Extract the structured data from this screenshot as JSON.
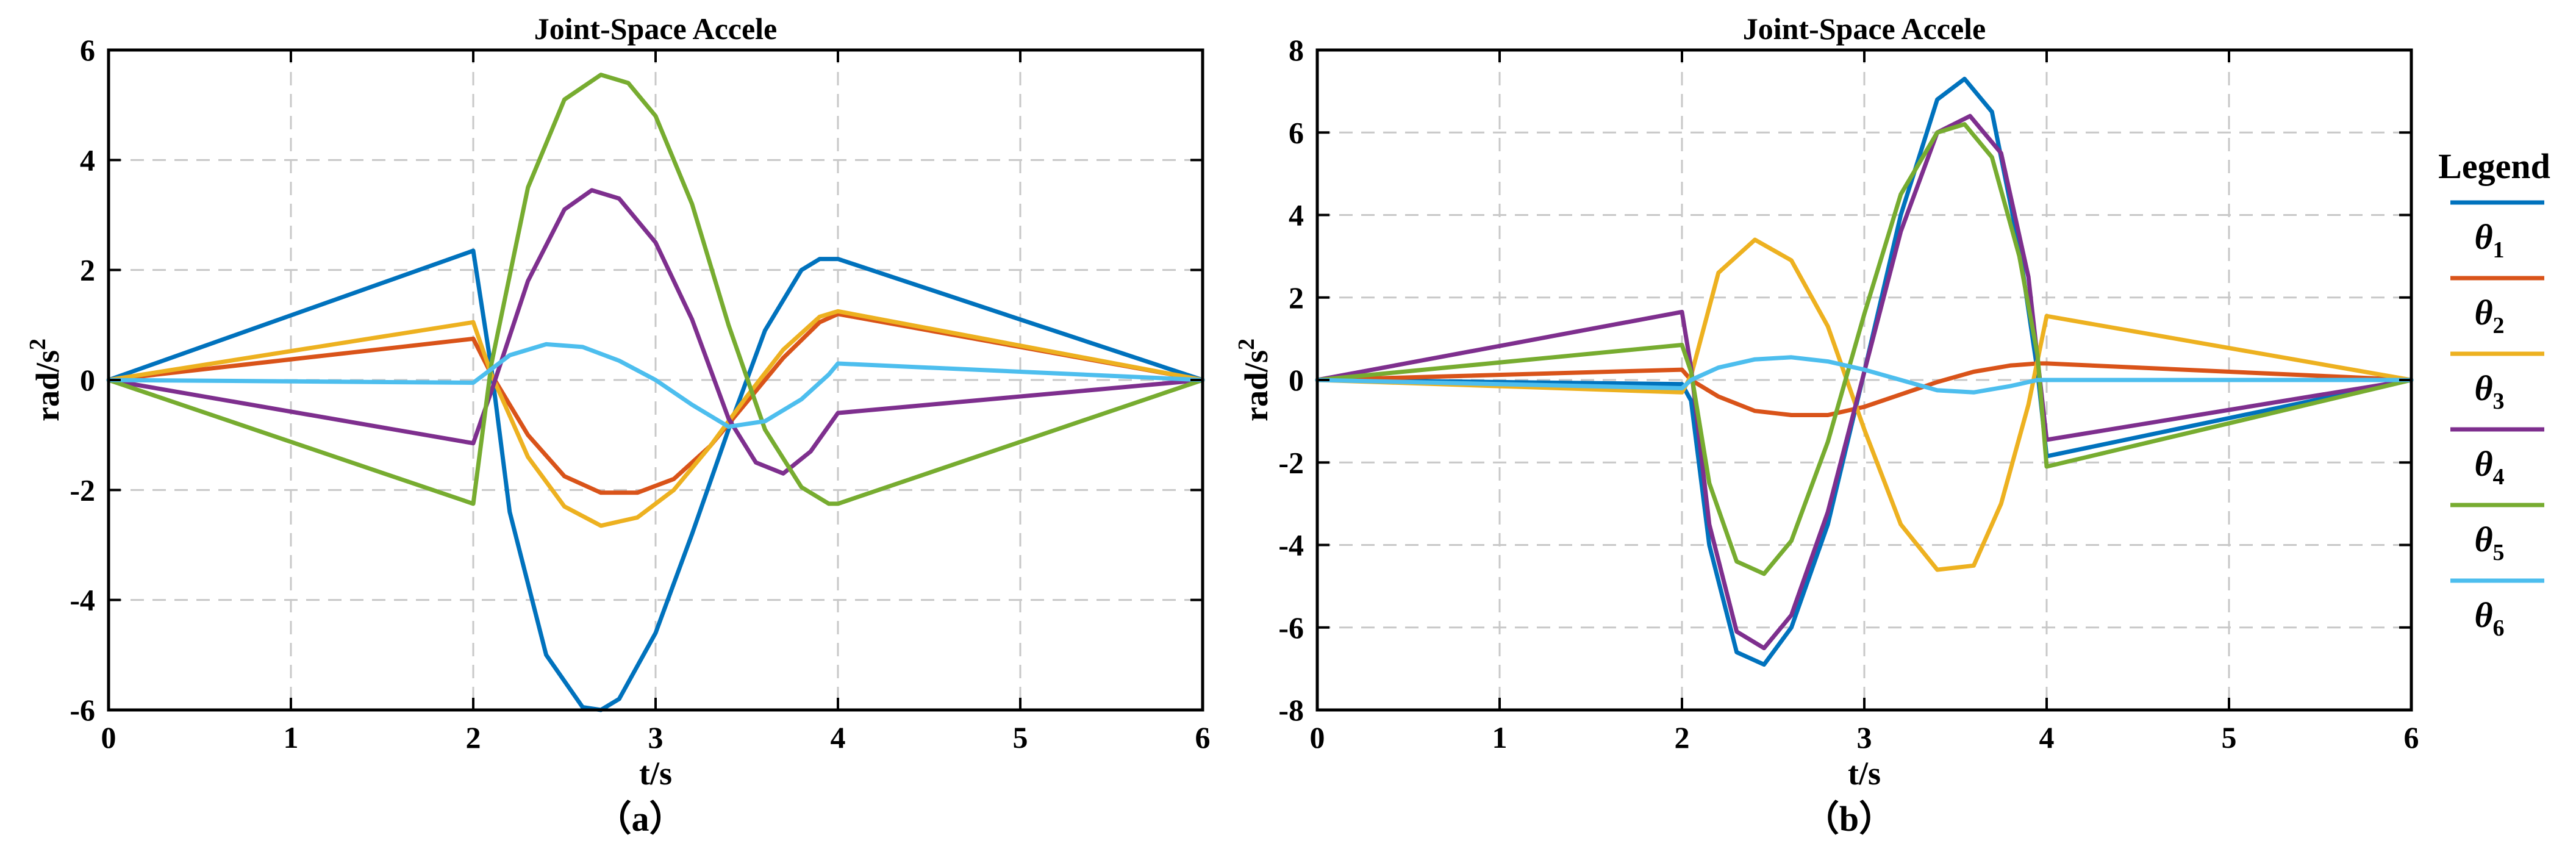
{
  "chart_data": [
    {
      "type": "line",
      "title": "Joint-Space Accele",
      "caption": "（a）",
      "xlabel": "t/s",
      "ylabel": "rad/s",
      "ylabel_sup": "2",
      "xlim": [
        0,
        6
      ],
      "ylim": [
        -6,
        6
      ],
      "xticks": [
        "0",
        "1",
        "2",
        "3",
        "4",
        "5",
        "6"
      ],
      "yticks": [
        "-6",
        "-4",
        "-2",
        "0",
        "2",
        "4",
        "6"
      ],
      "grid": true,
      "series": [
        {
          "name": "θ1",
          "color": "#0072BD",
          "x": [
            0,
            2,
            2.1,
            2.2,
            2.4,
            2.6,
            2.7,
            2.8,
            3.0,
            3.2,
            3.4,
            3.6,
            3.8,
            3.9,
            4.0,
            6
          ],
          "y": [
            0,
            2.35,
            0.2,
            -2.4,
            -5.0,
            -5.95,
            -6.0,
            -5.8,
            -4.6,
            -2.8,
            -0.9,
            0.9,
            2.0,
            2.2,
            2.2,
            0
          ]
        },
        {
          "name": "θ2",
          "color": "#D95319",
          "x": [
            0,
            2,
            2.1,
            2.3,
            2.5,
            2.7,
            2.9,
            3.1,
            3.3,
            3.5,
            3.7,
            3.9,
            4.0,
            6
          ],
          "y": [
            0,
            0.75,
            0.1,
            -1.0,
            -1.75,
            -2.05,
            -2.05,
            -1.8,
            -1.2,
            -0.4,
            0.4,
            1.05,
            1.2,
            0
          ]
        },
        {
          "name": "θ3",
          "color": "#EDB120",
          "x": [
            0,
            2,
            2.1,
            2.3,
            2.5,
            2.7,
            2.9,
            3.1,
            3.3,
            3.5,
            3.7,
            3.9,
            4.0,
            6
          ],
          "y": [
            0,
            1.05,
            0.1,
            -1.4,
            -2.3,
            -2.65,
            -2.5,
            -2.0,
            -1.2,
            -0.3,
            0.55,
            1.15,
            1.25,
            0
          ]
        },
        {
          "name": "θ4",
          "color": "#7E2F8E",
          "x": [
            0,
            2,
            2.1,
            2.3,
            2.5,
            2.65,
            2.8,
            3.0,
            3.2,
            3.4,
            3.55,
            3.7,
            3.85,
            4.0,
            6
          ],
          "y": [
            0,
            -1.15,
            -0.2,
            1.8,
            3.1,
            3.45,
            3.3,
            2.5,
            1.1,
            -0.7,
            -1.5,
            -1.7,
            -1.3,
            -0.6,
            0
          ]
        },
        {
          "name": "θ5",
          "color": "#77AC30",
          "x": [
            0,
            2,
            2.1,
            2.3,
            2.5,
            2.7,
            2.85,
            3.0,
            3.2,
            3.4,
            3.6,
            3.8,
            3.95,
            4.0,
            6
          ],
          "y": [
            0,
            -2.25,
            0.3,
            3.5,
            5.1,
            5.55,
            5.4,
            4.8,
            3.2,
            1.0,
            -0.9,
            -1.95,
            -2.25,
            -2.25,
            0
          ]
        },
        {
          "name": "θ6",
          "color": "#4DBEEE",
          "x": [
            0,
            2,
            2.1,
            2.2,
            2.4,
            2.6,
            2.8,
            3.0,
            3.2,
            3.4,
            3.6,
            3.8,
            3.95,
            4.0,
            6
          ],
          "y": [
            0,
            -0.05,
            0.2,
            0.45,
            0.65,
            0.6,
            0.35,
            0.0,
            -0.45,
            -0.85,
            -0.75,
            -0.35,
            0.1,
            0.3,
            0
          ]
        }
      ]
    },
    {
      "type": "line",
      "title": "Joint-Space Accele",
      "caption": "（b）",
      "xlabel": "t/s",
      "ylabel": "rad/s",
      "ylabel_sup": "2",
      "xlim": [
        0,
        6
      ],
      "ylim": [
        -8,
        8
      ],
      "xticks": [
        "0",
        "1",
        "2",
        "3",
        "4",
        "5",
        "6"
      ],
      "yticks": [
        "-8",
        "-6",
        "-4",
        "-2",
        "0",
        "2",
        "4",
        "6",
        "8"
      ],
      "grid": true,
      "legend_title": "Legend",
      "legend_position": "right",
      "series": [
        {
          "name": "θ1",
          "color": "#0072BD",
          "x": [
            0,
            2,
            2.05,
            2.15,
            2.3,
            2.45,
            2.6,
            2.8,
            3.0,
            3.2,
            3.4,
            3.55,
            3.7,
            3.85,
            3.95,
            4.0,
            6
          ],
          "y": [
            0,
            -0.1,
            -0.5,
            -4.0,
            -6.6,
            -6.9,
            -6.0,
            -3.5,
            0.2,
            4.0,
            6.8,
            7.3,
            6.5,
            3.2,
            0.2,
            -1.85,
            0
          ]
        },
        {
          "name": "θ2",
          "color": "#D95319",
          "x": [
            0,
            2,
            2.05,
            2.2,
            2.4,
            2.6,
            2.8,
            3.0,
            3.2,
            3.4,
            3.6,
            3.8,
            3.95,
            4.0,
            6
          ],
          "y": [
            0,
            0.25,
            0.0,
            -0.4,
            -0.75,
            -0.85,
            -0.85,
            -0.65,
            -0.35,
            -0.05,
            0.2,
            0.35,
            0.4,
            0.4,
            0
          ]
        },
        {
          "name": "θ3",
          "color": "#EDB120",
          "x": [
            0,
            2,
            2.05,
            2.2,
            2.4,
            2.6,
            2.8,
            3.0,
            3.2,
            3.4,
            3.6,
            3.75,
            3.9,
            4.0,
            6
          ],
          "y": [
            0,
            -0.3,
            0.1,
            2.6,
            3.4,
            2.9,
            1.3,
            -1.2,
            -3.5,
            -4.6,
            -4.5,
            -3.0,
            -0.6,
            1.55,
            0
          ]
        },
        {
          "name": "θ4",
          "color": "#7E2F8E",
          "x": [
            0,
            2,
            2.05,
            2.15,
            2.3,
            2.45,
            2.6,
            2.8,
            3.0,
            3.2,
            3.4,
            3.58,
            3.75,
            3.9,
            4.0,
            6
          ],
          "y": [
            0,
            1.65,
            0.3,
            -3.5,
            -6.1,
            -6.5,
            -5.7,
            -3.2,
            0.2,
            3.6,
            6.0,
            6.4,
            5.5,
            2.5,
            -1.45,
            0
          ]
        },
        {
          "name": "θ5",
          "color": "#77AC30",
          "x": [
            0,
            2,
            2.05,
            2.15,
            2.3,
            2.45,
            2.6,
            2.8,
            3.0,
            3.2,
            3.4,
            3.55,
            3.7,
            3.85,
            3.95,
            4.0,
            6
          ],
          "y": [
            0,
            0.85,
            0.2,
            -2.5,
            -4.4,
            -4.7,
            -3.9,
            -1.5,
            1.6,
            4.5,
            6.0,
            6.2,
            5.4,
            3.0,
            0.6,
            -2.1,
            0
          ]
        },
        {
          "name": "θ6",
          "color": "#4DBEEE",
          "x": [
            0,
            2,
            2.05,
            2.2,
            2.4,
            2.6,
            2.8,
            3.0,
            3.2,
            3.4,
            3.6,
            3.8,
            3.95,
            4.0,
            6
          ],
          "y": [
            0,
            -0.2,
            0.0,
            0.3,
            0.5,
            0.55,
            0.45,
            0.25,
            0.0,
            -0.25,
            -0.3,
            -0.15,
            0.0,
            0.0,
            0
          ]
        }
      ]
    }
  ]
}
